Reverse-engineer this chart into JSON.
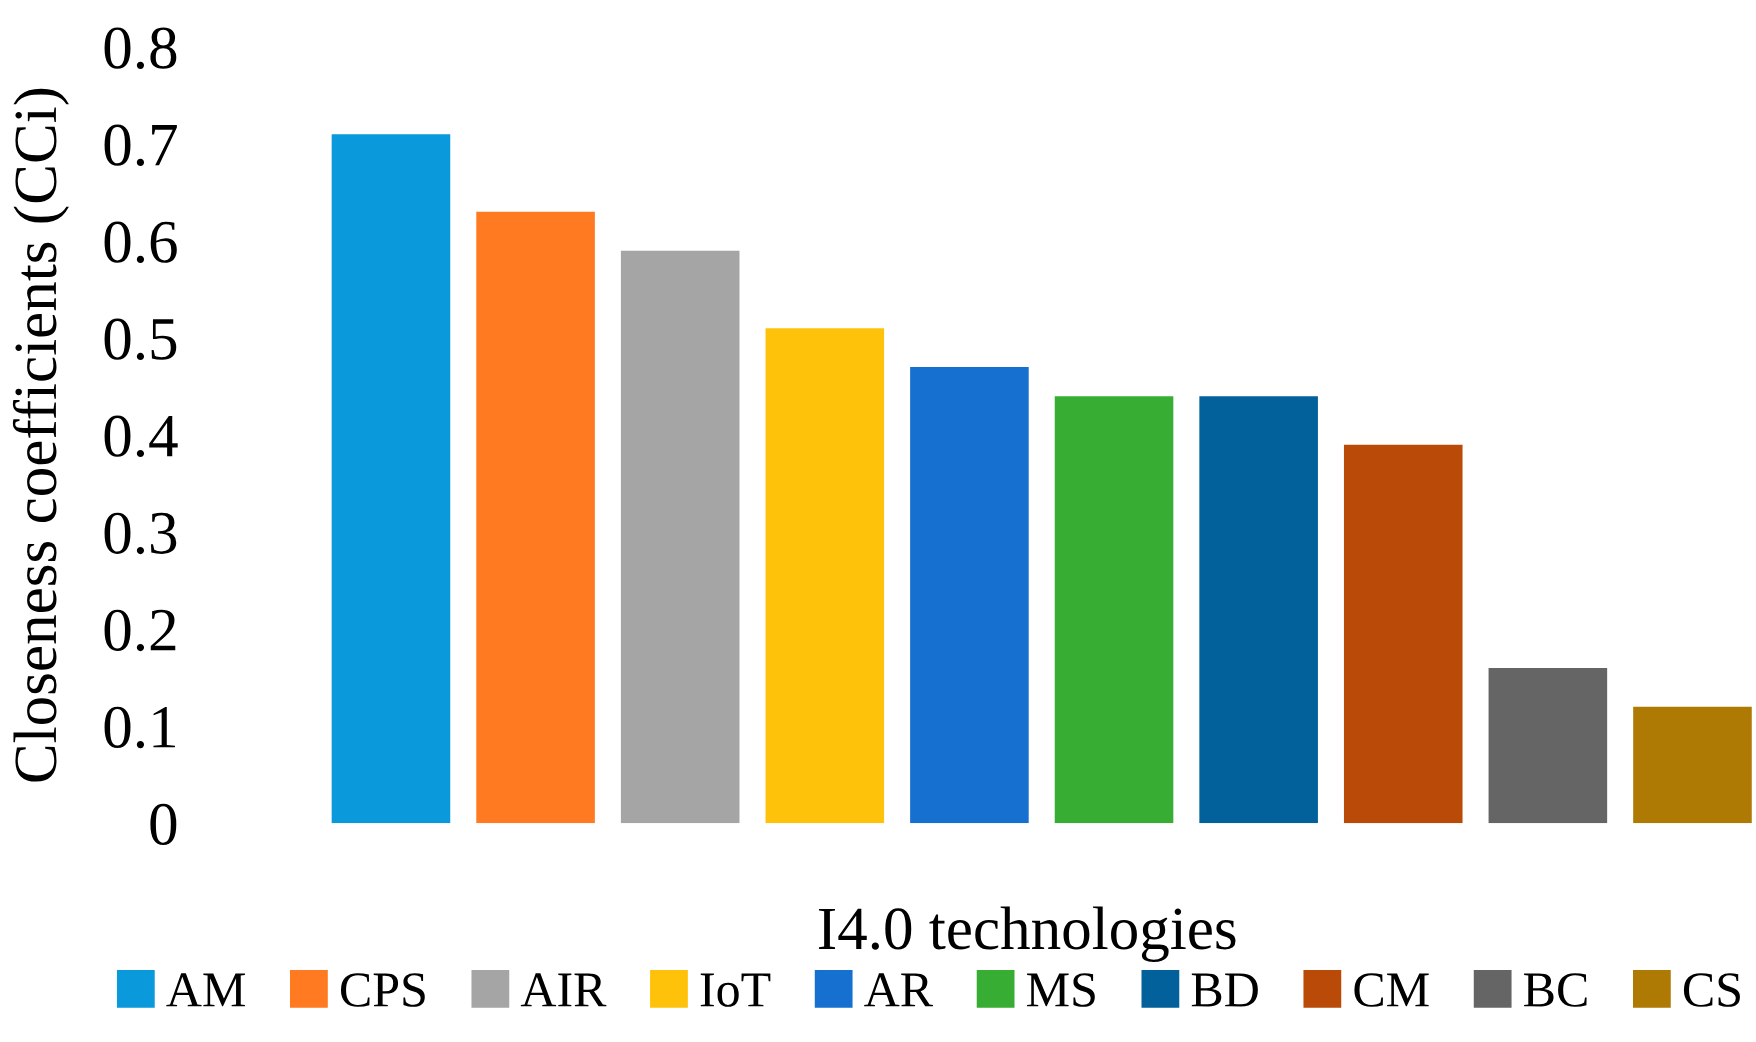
{
  "chart_data": {
    "type": "bar",
    "stacked": true,
    "xlabel": "I4.0 technologies",
    "ylabel": "Closeness coefficients (CCi)",
    "categories": [
      null,
      null,
      null,
      null,
      null,
      null,
      null,
      null,
      null,
      null
    ],
    "series": [
      {
        "name": "AM",
        "color": "#0a99db",
        "values": [
          0.71,
          null,
          null,
          null,
          null,
          null,
          null,
          null,
          null,
          null
        ]
      },
      {
        "name": "CPS",
        "color": "#ff7a20",
        "values": [
          null,
          0.63,
          null,
          null,
          null,
          null,
          null,
          null,
          null,
          null
        ]
      },
      {
        "name": "AIR",
        "color": "#a5a5a5",
        "values": [
          null,
          null,
          0.59,
          null,
          null,
          null,
          null,
          null,
          null,
          null
        ]
      },
      {
        "name": "IoT",
        "color": "#ffc20a",
        "values": [
          null,
          null,
          null,
          0.51,
          null,
          null,
          null,
          null,
          null,
          null
        ]
      },
      {
        "name": "AR",
        "color": "#1670d0",
        "values": [
          null,
          null,
          null,
          null,
          0.47,
          null,
          null,
          null,
          null,
          null
        ]
      },
      {
        "name": "MS",
        "color": "#38ad33",
        "values": [
          null,
          null,
          null,
          null,
          null,
          0.44,
          null,
          null,
          null,
          null
        ]
      },
      {
        "name": "BD",
        "color": "#02609a",
        "values": [
          null,
          null,
          null,
          null,
          null,
          null,
          0.44,
          null,
          null,
          null
        ]
      },
      {
        "name": "CM",
        "color": "#ba4a08",
        "values": [
          null,
          null,
          null,
          null,
          null,
          null,
          null,
          0.39,
          null,
          null
        ]
      },
      {
        "name": "BC",
        "color": "#656565",
        "values": [
          null,
          null,
          null,
          null,
          null,
          null,
          null,
          null,
          0.16,
          null
        ]
      },
      {
        "name": "CS",
        "color": "#ae7a04",
        "values": [
          null,
          null,
          null,
          null,
          null,
          null,
          null,
          null,
          null,
          0.12
        ]
      }
    ],
    "ylim": [
      0,
      0.8
    ],
    "yticks": [
      0,
      0.1,
      0.2,
      0.3,
      0.4,
      0.5,
      0.6,
      0.7,
      0.8
    ],
    "tick_labels": "y",
    "grid": false,
    "legend": "bottom"
  }
}
